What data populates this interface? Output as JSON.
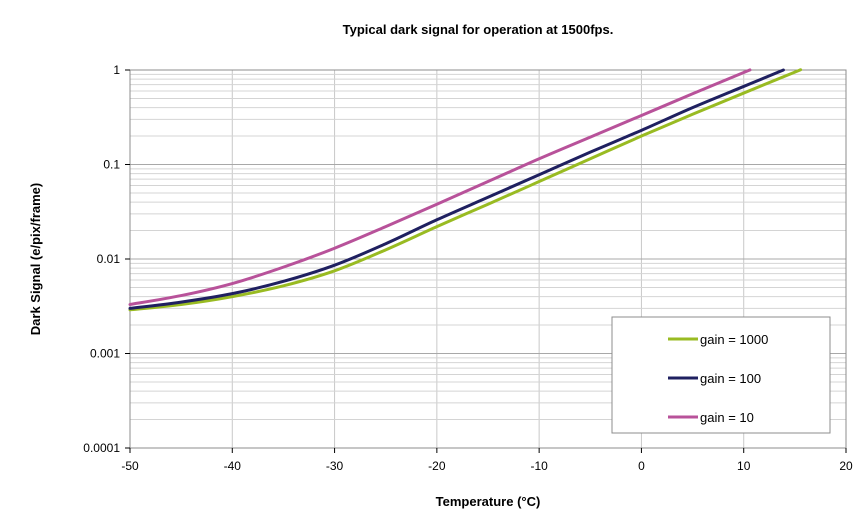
{
  "chart_data": {
    "type": "line",
    "title": "Typical dark signal for operation at 1500fps.",
    "xlabel": "Temperature (°C)",
    "ylabel": "Dark Signal (e/pix/frame)",
    "xlim": [
      -50,
      20
    ],
    "ylim": [
      0.0001,
      1
    ],
    "yscale": "log",
    "grid": true,
    "legend_position": "bottom-right",
    "x_ticks": [
      "-50",
      "-40",
      "-30",
      "-20",
      "-10",
      "0",
      "10",
      "20"
    ],
    "x_tick_values": [
      -50,
      -40,
      -30,
      -20,
      -10,
      0,
      10,
      20
    ],
    "y_ticks": [
      "0.0001",
      "0.001",
      "0.01",
      "0.1",
      "1"
    ],
    "y_tick_values": [
      0.0001,
      0.001,
      0.01,
      0.1,
      1
    ],
    "x": [
      -50,
      -45,
      -40,
      -35,
      -30,
      -25,
      -20,
      -15,
      -10,
      -5,
      0,
      5,
      10,
      15,
      20
    ],
    "series": [
      {
        "name": "gain = 1000",
        "color": "#99bb22",
        "values": [
          0.0029,
          0.0033,
          0.004,
          0.0052,
          0.0075,
          0.0125,
          0.022,
          0.038,
          0.066,
          0.115,
          0.2,
          0.34,
          0.57,
          0.95,
          null
        ]
      },
      {
        "name": "gain = 100",
        "color": "#1f2060",
        "values": [
          0.003,
          0.0035,
          0.0043,
          0.0058,
          0.0086,
          0.0145,
          0.026,
          0.045,
          0.078,
          0.135,
          0.23,
          0.4,
          0.67,
          null,
          null
        ]
      },
      {
        "name": "gain = 10",
        "color": "#b8529a",
        "values": [
          0.0033,
          0.0041,
          0.0055,
          0.0082,
          0.013,
          0.022,
          0.038,
          0.066,
          0.115,
          0.195,
          0.33,
          0.56,
          0.94,
          null,
          null
        ]
      }
    ]
  }
}
